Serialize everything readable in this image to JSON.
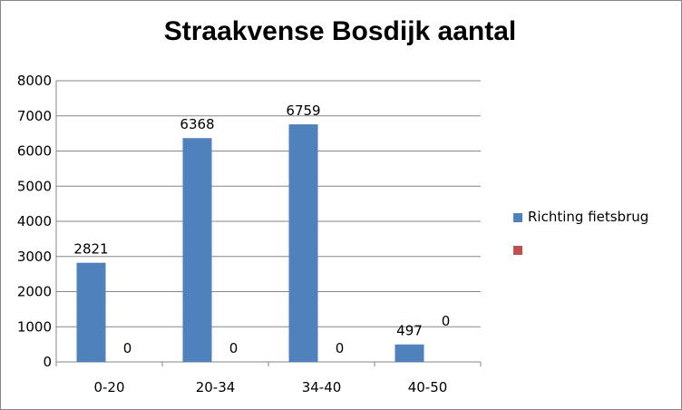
{
  "chart_data": {
    "type": "bar",
    "title": "Straakvense Bosdijk aantal",
    "categories": [
      "0-20",
      "20-34",
      "34-40",
      "40-50"
    ],
    "series": [
      {
        "name": "Richting fietsbrug",
        "values": [
          2821,
          6368,
          6759,
          497
        ],
        "color": "#4F81BD"
      },
      {
        "name": "",
        "values": [
          0,
          0,
          0,
          0
        ],
        "color": "#C0504D"
      }
    ],
    "ylim": [
      0,
      8000
    ],
    "yticks": [
      0,
      1000,
      2000,
      3000,
      4000,
      5000,
      6000,
      7000,
      8000
    ],
    "grid": true,
    "legend_position": "right"
  }
}
